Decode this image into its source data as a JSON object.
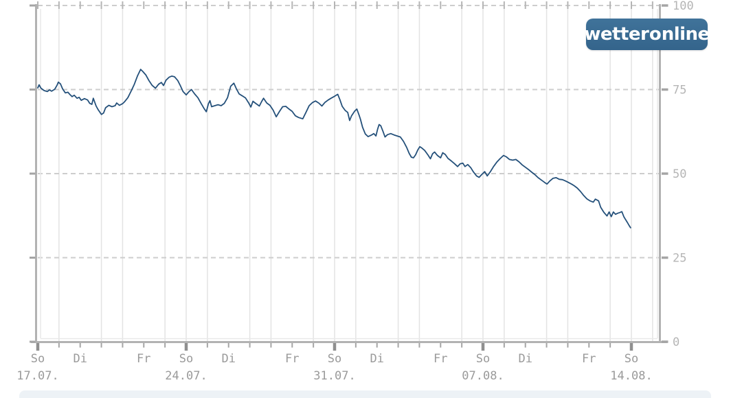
{
  "page": {
    "background": "#ffffff"
  },
  "logo": {
    "part1": "wetter",
    "accent_letter": "o",
    "part2": "nline",
    "bg_color": "#3a6b91",
    "text_color": "#ffffff",
    "accent_color": "#b9c400"
  },
  "bottom_strip": {
    "color": "#edf2f6"
  },
  "colors": {
    "frame": "#b2b2b2",
    "frame_inset": "#e9e9e9",
    "grid_vertical": "#e3e3e3",
    "grid_dashed": "#cdcdcd",
    "tick": "#a5a5a5",
    "tick_sunday": "#8f8f8f",
    "tick_top": "#b5b5b5"
  },
  "chart_data": {
    "type": "line",
    "title": "",
    "watermark": "wetteronline",
    "grid": "on",
    "legend_position": "none",
    "y_axis": {
      "range": [
        0,
        100
      ],
      "ticks": [
        0,
        25,
        50,
        75,
        100
      ],
      "tick_labels": [
        "0",
        "25",
        "50",
        "75",
        "100"
      ],
      "labels_side": "right",
      "dashed_gridline_values": [
        25,
        50,
        75,
        100
      ],
      "label_color": "#b5b5b5"
    },
    "x_axis": {
      "range_days": [
        0,
        29.4
      ],
      "label_color": "#9a9a9a",
      "ticks": [
        {
          "day": 0,
          "weekday": "So",
          "date": "17.07."
        },
        {
          "day": 2,
          "weekday": "Di"
        },
        {
          "day": 5,
          "weekday": "Fr"
        },
        {
          "day": 7,
          "weekday": "So",
          "date": "24.07."
        },
        {
          "day": 9,
          "weekday": "Di"
        },
        {
          "day": 12,
          "weekday": "Fr"
        },
        {
          "day": 14,
          "weekday": "So",
          "date": "31.07."
        },
        {
          "day": 16,
          "weekday": "Di"
        },
        {
          "day": 19,
          "weekday": "Fr"
        },
        {
          "day": 21,
          "weekday": "So",
          "date": "07.08."
        },
        {
          "day": 23,
          "weekday": "Di"
        },
        {
          "day": 26,
          "weekday": "Fr"
        },
        {
          "day": 28,
          "weekday": "So",
          "date": "14.08."
        }
      ],
      "gridline_days": [
        1,
        3,
        4,
        6,
        7,
        8,
        10,
        11,
        13,
        14,
        15,
        17,
        18,
        20,
        21,
        22,
        24,
        25,
        27,
        28,
        29
      ],
      "minor_tick_days_range": [
        0,
        28
      ],
      "sunday_days": [
        0,
        7,
        14,
        21,
        28
      ]
    },
    "series": [
      {
        "name": "value",
        "color": "#24507a",
        "points": [
          [
            0.0,
            75.5
          ],
          [
            0.06,
            76.4
          ],
          [
            0.15,
            75.4
          ],
          [
            0.3,
            74.7
          ],
          [
            0.45,
            74.4
          ],
          [
            0.55,
            74.9
          ],
          [
            0.65,
            74.5
          ],
          [
            0.8,
            75.1
          ],
          [
            0.91,
            76.3
          ],
          [
            0.97,
            77.2
          ],
          [
            1.07,
            76.7
          ],
          [
            1.17,
            75.2
          ],
          [
            1.3,
            74.0
          ],
          [
            1.42,
            74.2
          ],
          [
            1.52,
            73.5
          ],
          [
            1.62,
            72.9
          ],
          [
            1.72,
            73.3
          ],
          [
            1.85,
            72.4
          ],
          [
            1.95,
            72.7
          ],
          [
            2.05,
            71.8
          ],
          [
            2.2,
            72.3
          ],
          [
            2.35,
            71.9
          ],
          [
            2.45,
            70.9
          ],
          [
            2.55,
            70.6
          ],
          [
            2.62,
            72.4
          ],
          [
            2.75,
            70.1
          ],
          [
            2.85,
            69.0
          ],
          [
            3.0,
            67.6
          ],
          [
            3.1,
            68.0
          ],
          [
            3.2,
            69.6
          ],
          [
            3.35,
            70.3
          ],
          [
            3.5,
            69.9
          ],
          [
            3.65,
            70.2
          ],
          [
            3.72,
            71.0
          ],
          [
            3.85,
            70.3
          ],
          [
            4.0,
            70.8
          ],
          [
            4.1,
            71.4
          ],
          [
            4.25,
            72.6
          ],
          [
            4.4,
            74.5
          ],
          [
            4.55,
            76.5
          ],
          [
            4.7,
            79.0
          ],
          [
            4.85,
            81.0
          ],
          [
            4.95,
            80.4
          ],
          [
            5.1,
            79.3
          ],
          [
            5.25,
            77.6
          ],
          [
            5.4,
            76.2
          ],
          [
            5.55,
            75.4
          ],
          [
            5.7,
            76.6
          ],
          [
            5.83,
            77.1
          ],
          [
            5.93,
            76.2
          ],
          [
            6.05,
            77.8
          ],
          [
            6.2,
            78.7
          ],
          [
            6.32,
            79.0
          ],
          [
            6.45,
            78.8
          ],
          [
            6.6,
            77.7
          ],
          [
            6.72,
            76.2
          ],
          [
            6.85,
            74.4
          ],
          [
            7.0,
            73.4
          ],
          [
            7.12,
            74.3
          ],
          [
            7.25,
            75.0
          ],
          [
            7.4,
            73.7
          ],
          [
            7.55,
            72.6
          ],
          [
            7.7,
            70.9
          ],
          [
            7.85,
            69.3
          ],
          [
            7.95,
            68.4
          ],
          [
            8.05,
            70.8
          ],
          [
            8.12,
            71.7
          ],
          [
            8.2,
            69.9
          ],
          [
            8.35,
            70.2
          ],
          [
            8.5,
            70.5
          ],
          [
            8.65,
            70.2
          ],
          [
            8.8,
            70.9
          ],
          [
            8.95,
            72.6
          ],
          [
            9.1,
            76.0
          ],
          [
            9.25,
            76.9
          ],
          [
            9.37,
            75.2
          ],
          [
            9.5,
            73.7
          ],
          [
            9.65,
            73.1
          ],
          [
            9.8,
            72.5
          ],
          [
            9.95,
            71.0
          ],
          [
            10.05,
            69.8
          ],
          [
            10.15,
            71.5
          ],
          [
            10.3,
            70.8
          ],
          [
            10.45,
            70.1
          ],
          [
            10.55,
            71.3
          ],
          [
            10.65,
            72.4
          ],
          [
            10.8,
            71.0
          ],
          [
            10.95,
            70.3
          ],
          [
            11.1,
            68.9
          ],
          [
            11.25,
            66.9
          ],
          [
            11.4,
            68.5
          ],
          [
            11.55,
            69.9
          ],
          [
            11.7,
            70.0
          ],
          [
            11.85,
            69.2
          ],
          [
            12.0,
            68.5
          ],
          [
            12.15,
            67.2
          ],
          [
            12.3,
            66.7
          ],
          [
            12.5,
            66.3
          ],
          [
            12.65,
            68.2
          ],
          [
            12.8,
            70.2
          ],
          [
            12.95,
            71.1
          ],
          [
            13.1,
            71.6
          ],
          [
            13.25,
            71.0
          ],
          [
            13.4,
            70.1
          ],
          [
            13.55,
            71.2
          ],
          [
            13.7,
            71.9
          ],
          [
            13.85,
            72.5
          ],
          [
            14.0,
            73.0
          ],
          [
            14.15,
            73.6
          ],
          [
            14.25,
            72.0
          ],
          [
            14.36,
            70.0
          ],
          [
            14.5,
            68.8
          ],
          [
            14.62,
            68.2
          ],
          [
            14.71,
            65.8
          ],
          [
            14.8,
            67.2
          ],
          [
            14.95,
            68.6
          ],
          [
            15.05,
            69.2
          ],
          [
            15.15,
            67.5
          ],
          [
            15.22,
            66.2
          ],
          [
            15.32,
            63.8
          ],
          [
            15.45,
            61.8
          ],
          [
            15.58,
            61.0
          ],
          [
            15.72,
            61.4
          ],
          [
            15.85,
            61.9
          ],
          [
            15.95,
            61.2
          ],
          [
            16.03,
            63.2
          ],
          [
            16.1,
            64.6
          ],
          [
            16.18,
            64.2
          ],
          [
            16.28,
            62.6
          ],
          [
            16.38,
            60.9
          ],
          [
            16.5,
            61.6
          ],
          [
            16.65,
            61.9
          ],
          [
            16.8,
            61.5
          ],
          [
            16.95,
            61.2
          ],
          [
            17.1,
            60.9
          ],
          [
            17.25,
            59.6
          ],
          [
            17.4,
            57.8
          ],
          [
            17.52,
            56.0
          ],
          [
            17.62,
            54.9
          ],
          [
            17.72,
            54.7
          ],
          [
            17.82,
            55.6
          ],
          [
            17.92,
            57.0
          ],
          [
            18.02,
            58.0
          ],
          [
            18.12,
            57.6
          ],
          [
            18.25,
            56.9
          ],
          [
            18.4,
            55.6
          ],
          [
            18.52,
            54.4
          ],
          [
            18.62,
            55.9
          ],
          [
            18.72,
            56.4
          ],
          [
            18.85,
            55.4
          ],
          [
            19.0,
            54.7
          ],
          [
            19.1,
            56.2
          ],
          [
            19.22,
            55.7
          ],
          [
            19.35,
            54.5
          ],
          [
            19.5,
            53.8
          ],
          [
            19.65,
            53.0
          ],
          [
            19.8,
            52.1
          ],
          [
            19.92,
            52.9
          ],
          [
            20.05,
            53.1
          ],
          [
            20.15,
            52.1
          ],
          [
            20.28,
            52.7
          ],
          [
            20.42,
            51.8
          ],
          [
            20.55,
            50.5
          ],
          [
            20.7,
            49.3
          ],
          [
            20.82,
            48.9
          ],
          [
            20.95,
            49.8
          ],
          [
            21.08,
            50.6
          ],
          [
            21.2,
            49.3
          ],
          [
            21.35,
            50.6
          ],
          [
            21.5,
            52.1
          ],
          [
            21.65,
            53.4
          ],
          [
            21.8,
            54.4
          ],
          [
            21.97,
            55.4
          ],
          [
            22.1,
            55.0
          ],
          [
            22.25,
            54.2
          ],
          [
            22.4,
            54.0
          ],
          [
            22.55,
            54.2
          ],
          [
            22.7,
            53.5
          ],
          [
            22.85,
            52.6
          ],
          [
            23.0,
            51.9
          ],
          [
            23.15,
            51.2
          ],
          [
            23.3,
            50.4
          ],
          [
            23.45,
            49.7
          ],
          [
            23.6,
            48.8
          ],
          [
            23.75,
            48.1
          ],
          [
            23.9,
            47.4
          ],
          [
            24.02,
            46.9
          ],
          [
            24.15,
            47.8
          ],
          [
            24.3,
            48.6
          ],
          [
            24.45,
            48.8
          ],
          [
            24.6,
            48.3
          ],
          [
            24.75,
            48.2
          ],
          [
            24.9,
            47.8
          ],
          [
            25.05,
            47.3
          ],
          [
            25.2,
            46.8
          ],
          [
            25.3,
            46.4
          ],
          [
            25.45,
            45.7
          ],
          [
            25.6,
            44.7
          ],
          [
            25.75,
            43.5
          ],
          [
            25.9,
            42.5
          ],
          [
            26.05,
            41.9
          ],
          [
            26.2,
            41.5
          ],
          [
            26.3,
            42.4
          ],
          [
            26.45,
            41.9
          ],
          [
            26.55,
            40.0
          ],
          [
            26.7,
            38.5
          ],
          [
            26.85,
            37.4
          ],
          [
            26.95,
            38.6
          ],
          [
            27.05,
            37.2
          ],
          [
            27.15,
            38.6
          ],
          [
            27.25,
            37.9
          ],
          [
            27.35,
            38.2
          ],
          [
            27.45,
            38.4
          ],
          [
            27.55,
            38.7
          ],
          [
            27.65,
            37.1
          ],
          [
            27.8,
            35.6
          ],
          [
            27.9,
            34.5
          ],
          [
            27.96,
            33.9
          ]
        ]
      }
    ]
  }
}
